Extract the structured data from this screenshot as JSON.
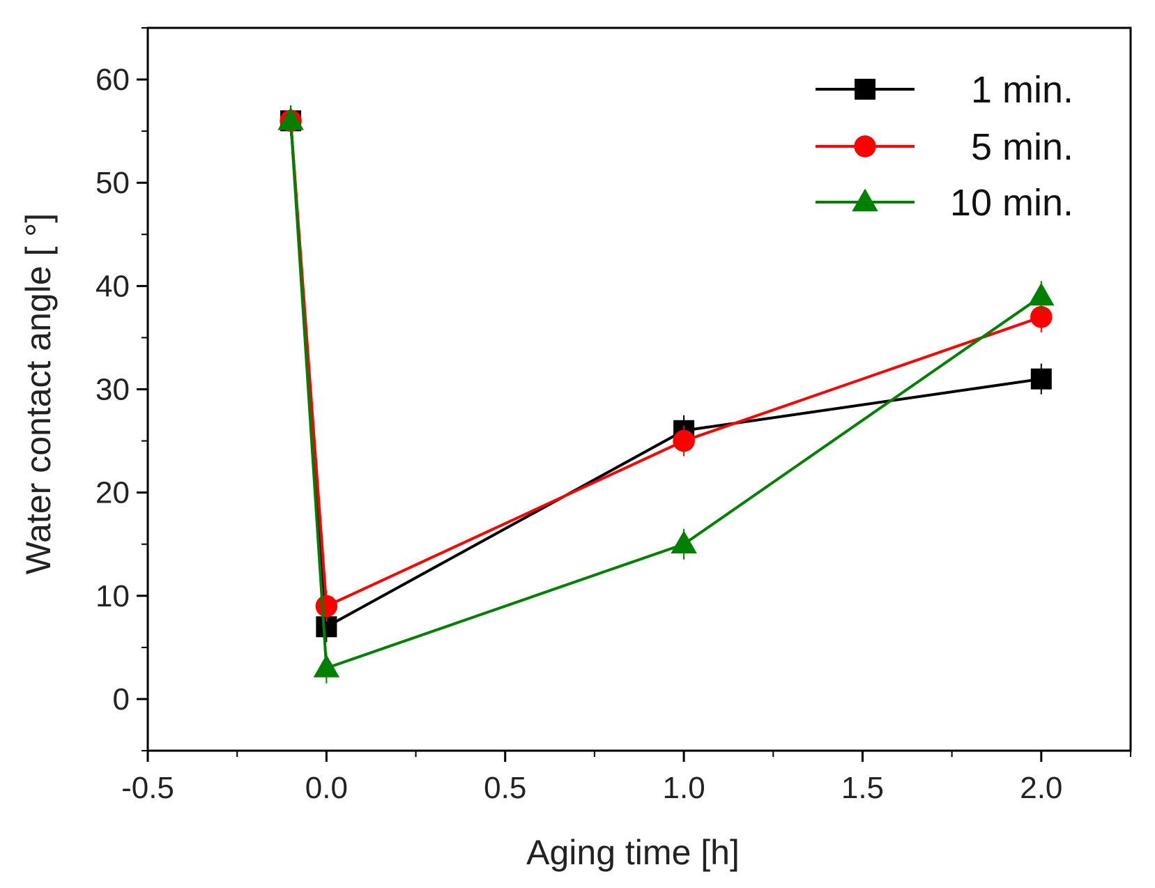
{
  "chart_data": {
    "type": "line",
    "xlabel": "Aging time [h]",
    "ylabel": "Water contact angle [ °]",
    "xlim": [
      -0.5,
      2.25
    ],
    "ylim": [
      -5,
      65
    ],
    "x_ticks": [
      -0.5,
      0.0,
      0.5,
      1.0,
      1.5,
      2.0
    ],
    "x_tick_labels": [
      "-0.5",
      "0.0",
      "0.5",
      "1.0",
      "1.5",
      "2.0"
    ],
    "y_ticks": [
      0,
      10,
      20,
      30,
      40,
      50,
      60
    ],
    "y_tick_labels": [
      "0",
      "10",
      "20",
      "30",
      "40",
      "50",
      "60"
    ],
    "legend_position": "top-right",
    "series": [
      {
        "name": "1 min.",
        "legend_label": "1 min.",
        "color": "#000000",
        "marker": "square",
        "x": [
          -0.1,
          0.0,
          1.0,
          2.0
        ],
        "y": [
          56,
          7,
          26,
          31
        ]
      },
      {
        "name": "5 min.",
        "legend_label": "5 min.",
        "color": "#ff0000",
        "marker": "circle",
        "x": [
          -0.1,
          0.0,
          1.0,
          2.0
        ],
        "y": [
          56,
          9,
          25,
          37
        ]
      },
      {
        "name": "10 min.",
        "legend_label": "10 min.",
        "color": "#008000",
        "marker": "triangle",
        "x": [
          -0.1,
          0.0,
          1.0,
          2.0
        ],
        "y": [
          56,
          3,
          15,
          39
        ]
      }
    ]
  }
}
